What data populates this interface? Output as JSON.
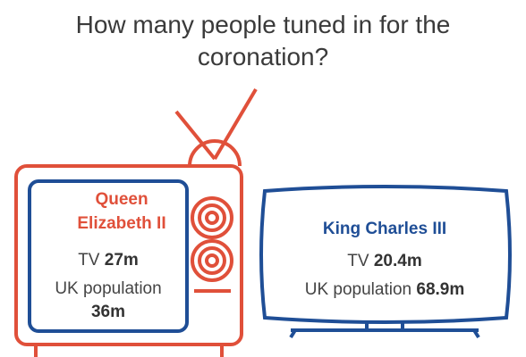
{
  "header": {
    "title": "How many people tuned in for the coronation?"
  },
  "panels": [
    {
      "name": "Queen Elizabeth II",
      "tv_label": "TV",
      "tv_value": "27m",
      "population_label": "UK population",
      "population_value": "36m"
    },
    {
      "name": "King Charles III",
      "tv_label": "TV",
      "tv_value": "20.4m",
      "population_label": "UK population",
      "population_value": "68.9m"
    }
  ]
}
